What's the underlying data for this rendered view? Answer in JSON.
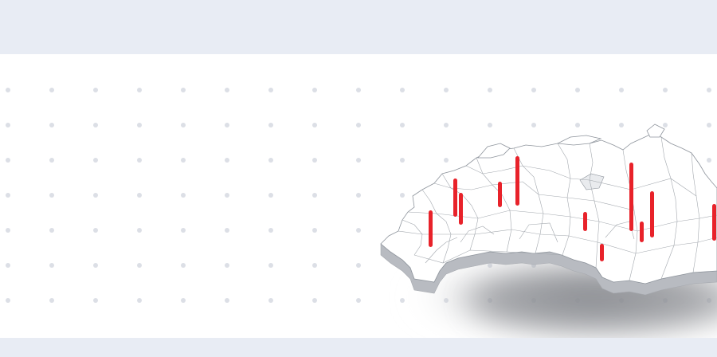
{
  "colors": {
    "background_band": "#e8ecf4",
    "panel": "#ffffff",
    "grid_dot": "#dcdfe6",
    "map_top": "#ffffff",
    "map_border": "#9aa0a8",
    "map_side": "#b8bbc1",
    "map_shadow": "#7f8187",
    "marker": "#e8222a"
  },
  "map": {
    "region": "Russia",
    "style": "3d-extruded-outline",
    "markers_count": 12
  }
}
